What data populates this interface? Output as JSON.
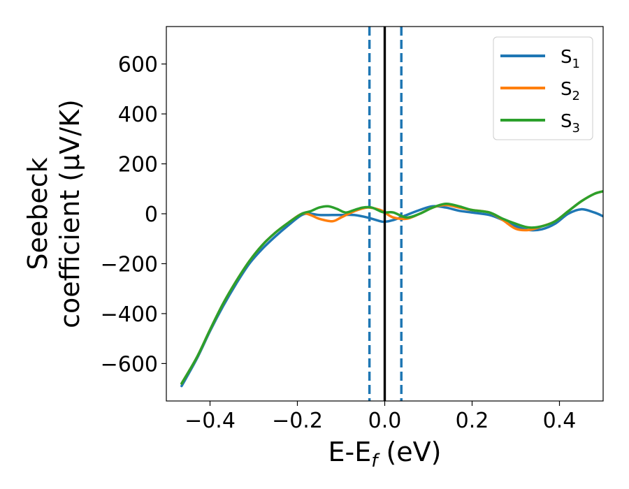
{
  "chart_data": {
    "type": "line",
    "xlabel": {
      "main": "E-E",
      "sub": "f",
      "tail": " (eV)"
    },
    "ylabel": {
      "line1": "Seebeck",
      "line2": "coefficient  (μV/K)"
    },
    "xlim": [
      -0.5,
      0.5
    ],
    "ylim": [
      -750,
      750
    ],
    "xticks": [
      -0.4,
      -0.2,
      0.0,
      0.2,
      0.4
    ],
    "xtick_labels": [
      "−0.4",
      "−0.2",
      "0.0",
      "0.2",
      "0.4"
    ],
    "yticks": [
      -600,
      -400,
      -200,
      0,
      200,
      400,
      600
    ],
    "ytick_labels": [
      "−600",
      "−400",
      "−200",
      "0",
      "200",
      "400",
      "600"
    ],
    "grid": false,
    "legend_position": "top-right",
    "vlines": [
      {
        "x": -0.035,
        "style": "dashed",
        "color": "#1f77b4"
      },
      {
        "x": 0.038,
        "style": "dashed",
        "color": "#1f77b4"
      },
      {
        "x": 0.0,
        "style": "solid",
        "color": "#000000"
      }
    ],
    "series": [
      {
        "name": "S",
        "sub": "1",
        "color": "#1f77b4",
        "x": [
          -0.465,
          -0.43,
          -0.4,
          -0.37,
          -0.34,
          -0.31,
          -0.28,
          -0.25,
          -0.22,
          -0.19,
          -0.17,
          -0.15,
          -0.12,
          -0.1,
          -0.07,
          -0.04,
          -0.01,
          0.0,
          0.02,
          0.05,
          0.08,
          0.11,
          0.14,
          0.17,
          0.2,
          0.24,
          0.27,
          0.3,
          0.33,
          0.36,
          0.39,
          0.42,
          0.45,
          0.48,
          0.5
        ],
        "y": [
          -690,
          -580,
          -470,
          -370,
          -280,
          -200,
          -140,
          -90,
          -45,
          -5,
          0,
          -5,
          -5,
          -5,
          -5,
          -15,
          -30,
          -32,
          -25,
          -5,
          15,
          30,
          25,
          12,
          5,
          -5,
          -25,
          -50,
          -65,
          -62,
          -40,
          0,
          18,
          5,
          -10
        ]
      },
      {
        "name": "S",
        "sub": "2",
        "color": "#ff7f0e",
        "x": [
          -0.465,
          -0.43,
          -0.4,
          -0.37,
          -0.34,
          -0.31,
          -0.28,
          -0.25,
          -0.22,
          -0.19,
          -0.17,
          -0.15,
          -0.12,
          -0.1,
          -0.07,
          -0.04,
          -0.01,
          0.0,
          0.02,
          0.05,
          0.08,
          0.11,
          0.14,
          0.17,
          0.2,
          0.24,
          0.27,
          0.3,
          0.33,
          0.36,
          0.39,
          0.42,
          0.45,
          0.48,
          0.5
        ],
        "y": [
          -680,
          -575,
          -465,
          -360,
          -270,
          -190,
          -125,
          -75,
          -35,
          0,
          -5,
          -20,
          -30,
          -15,
          10,
          25,
          15,
          5,
          -15,
          -20,
          0,
          25,
          35,
          25,
          15,
          5,
          -25,
          -60,
          -65,
          -50,
          -30,
          10,
          50,
          80,
          90
        ]
      },
      {
        "name": "S",
        "sub": "3",
        "color": "#2ca02c",
        "x": [
          -0.465,
          -0.43,
          -0.4,
          -0.37,
          -0.34,
          -0.31,
          -0.28,
          -0.25,
          -0.22,
          -0.19,
          -0.17,
          -0.15,
          -0.13,
          -0.11,
          -0.09,
          -0.07,
          -0.05,
          -0.03,
          -0.01,
          0.0,
          0.02,
          0.05,
          0.08,
          0.11,
          0.14,
          0.17,
          0.2,
          0.24,
          0.27,
          0.3,
          0.33,
          0.36,
          0.39,
          0.42,
          0.45,
          0.48,
          0.5
        ],
        "y": [
          -680,
          -575,
          -465,
          -360,
          -270,
          -190,
          -125,
          -75,
          -35,
          0,
          10,
          25,
          30,
          20,
          5,
          15,
          25,
          25,
          10,
          5,
          5,
          -15,
          0,
          25,
          40,
          30,
          15,
          5,
          -20,
          -40,
          -55,
          -50,
          -30,
          10,
          50,
          80,
          90
        ]
      }
    ]
  }
}
